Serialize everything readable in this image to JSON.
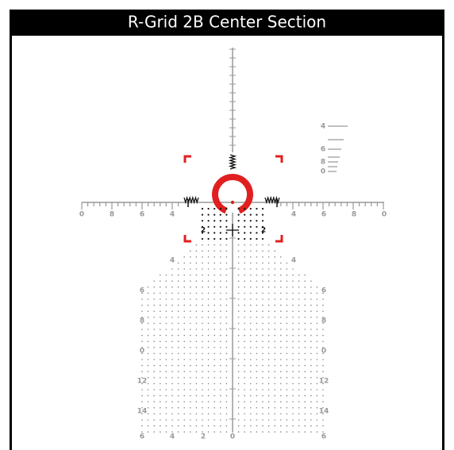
{
  "header": {
    "title": "R-Grid 2B Center Section"
  },
  "horizontal_scale": {
    "left": [
      "0",
      "8",
      "6",
      "4"
    ],
    "right": [
      "4",
      "6",
      "8",
      "0"
    ]
  },
  "grid_labels": [
    {
      "left": "2",
      "right": "2"
    },
    {
      "left": "4",
      "right": "4"
    },
    {
      "left": "6",
      "right": "6"
    },
    {
      "left": "8",
      "right": "8"
    },
    {
      "left": "0",
      "right": "0"
    },
    {
      "left": "12",
      "right": "12"
    },
    {
      "left": "14",
      "right": "14"
    }
  ],
  "bottom_labels": [
    "6",
    "4",
    "2",
    "0",
    "6"
  ],
  "rangefinder_labels": [
    "4",
    "6",
    "8",
    "0"
  ]
}
